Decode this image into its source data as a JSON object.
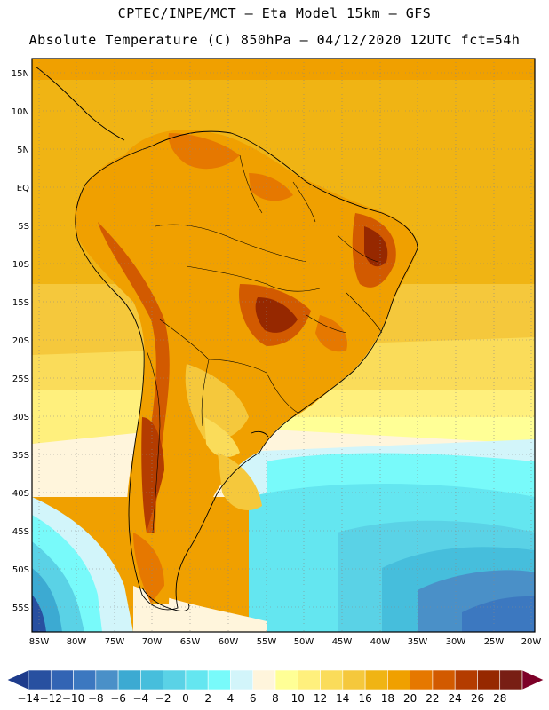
{
  "header": {
    "title_line1": "CPTEC/INPE/MCT –  Eta Model 15km – GFS",
    "title_line2": "Absolute Temperature (C) 850hPa – 04/12/2020 12UTC fct=54h"
  },
  "map": {
    "lat_labels": [
      "15N",
      "10N",
      "5N",
      "EQ",
      "5S",
      "10S",
      "15S",
      "20S",
      "25S",
      "30S",
      "35S",
      "40S",
      "45S",
      "50S",
      "55S"
    ],
    "lon_labels": [
      "85W",
      "80W",
      "75W",
      "70W",
      "65W",
      "60W",
      "55W",
      "50W",
      "45W",
      "40W",
      "35W",
      "30W",
      "25W",
      "20W"
    ]
  },
  "colorbar": {
    "labels": [
      "-14",
      "-12",
      "-10",
      "-8",
      "-6",
      "-4",
      "-2",
      "0",
      "2",
      "4",
      "6",
      "8",
      "10",
      "12",
      "14",
      "16",
      "18",
      "20",
      "22",
      "24",
      "26",
      "28"
    ],
    "colors": [
      "#1e3c8c",
      "#2850a0",
      "#3264b4",
      "#3c78c0",
      "#4a90c8",
      "#3caad2",
      "#46bedc",
      "#5ad2e6",
      "#64e6f0",
      "#78fafa",
      "#d2f5fa",
      "#fff5dc",
      "#ffff96",
      "#fff07d",
      "#fadc5a",
      "#f5c83c",
      "#f0b414",
      "#f0a000",
      "#e67800",
      "#d25a00",
      "#b43c00",
      "#962800",
      "#781e14",
      "#7d0028"
    ]
  }
}
